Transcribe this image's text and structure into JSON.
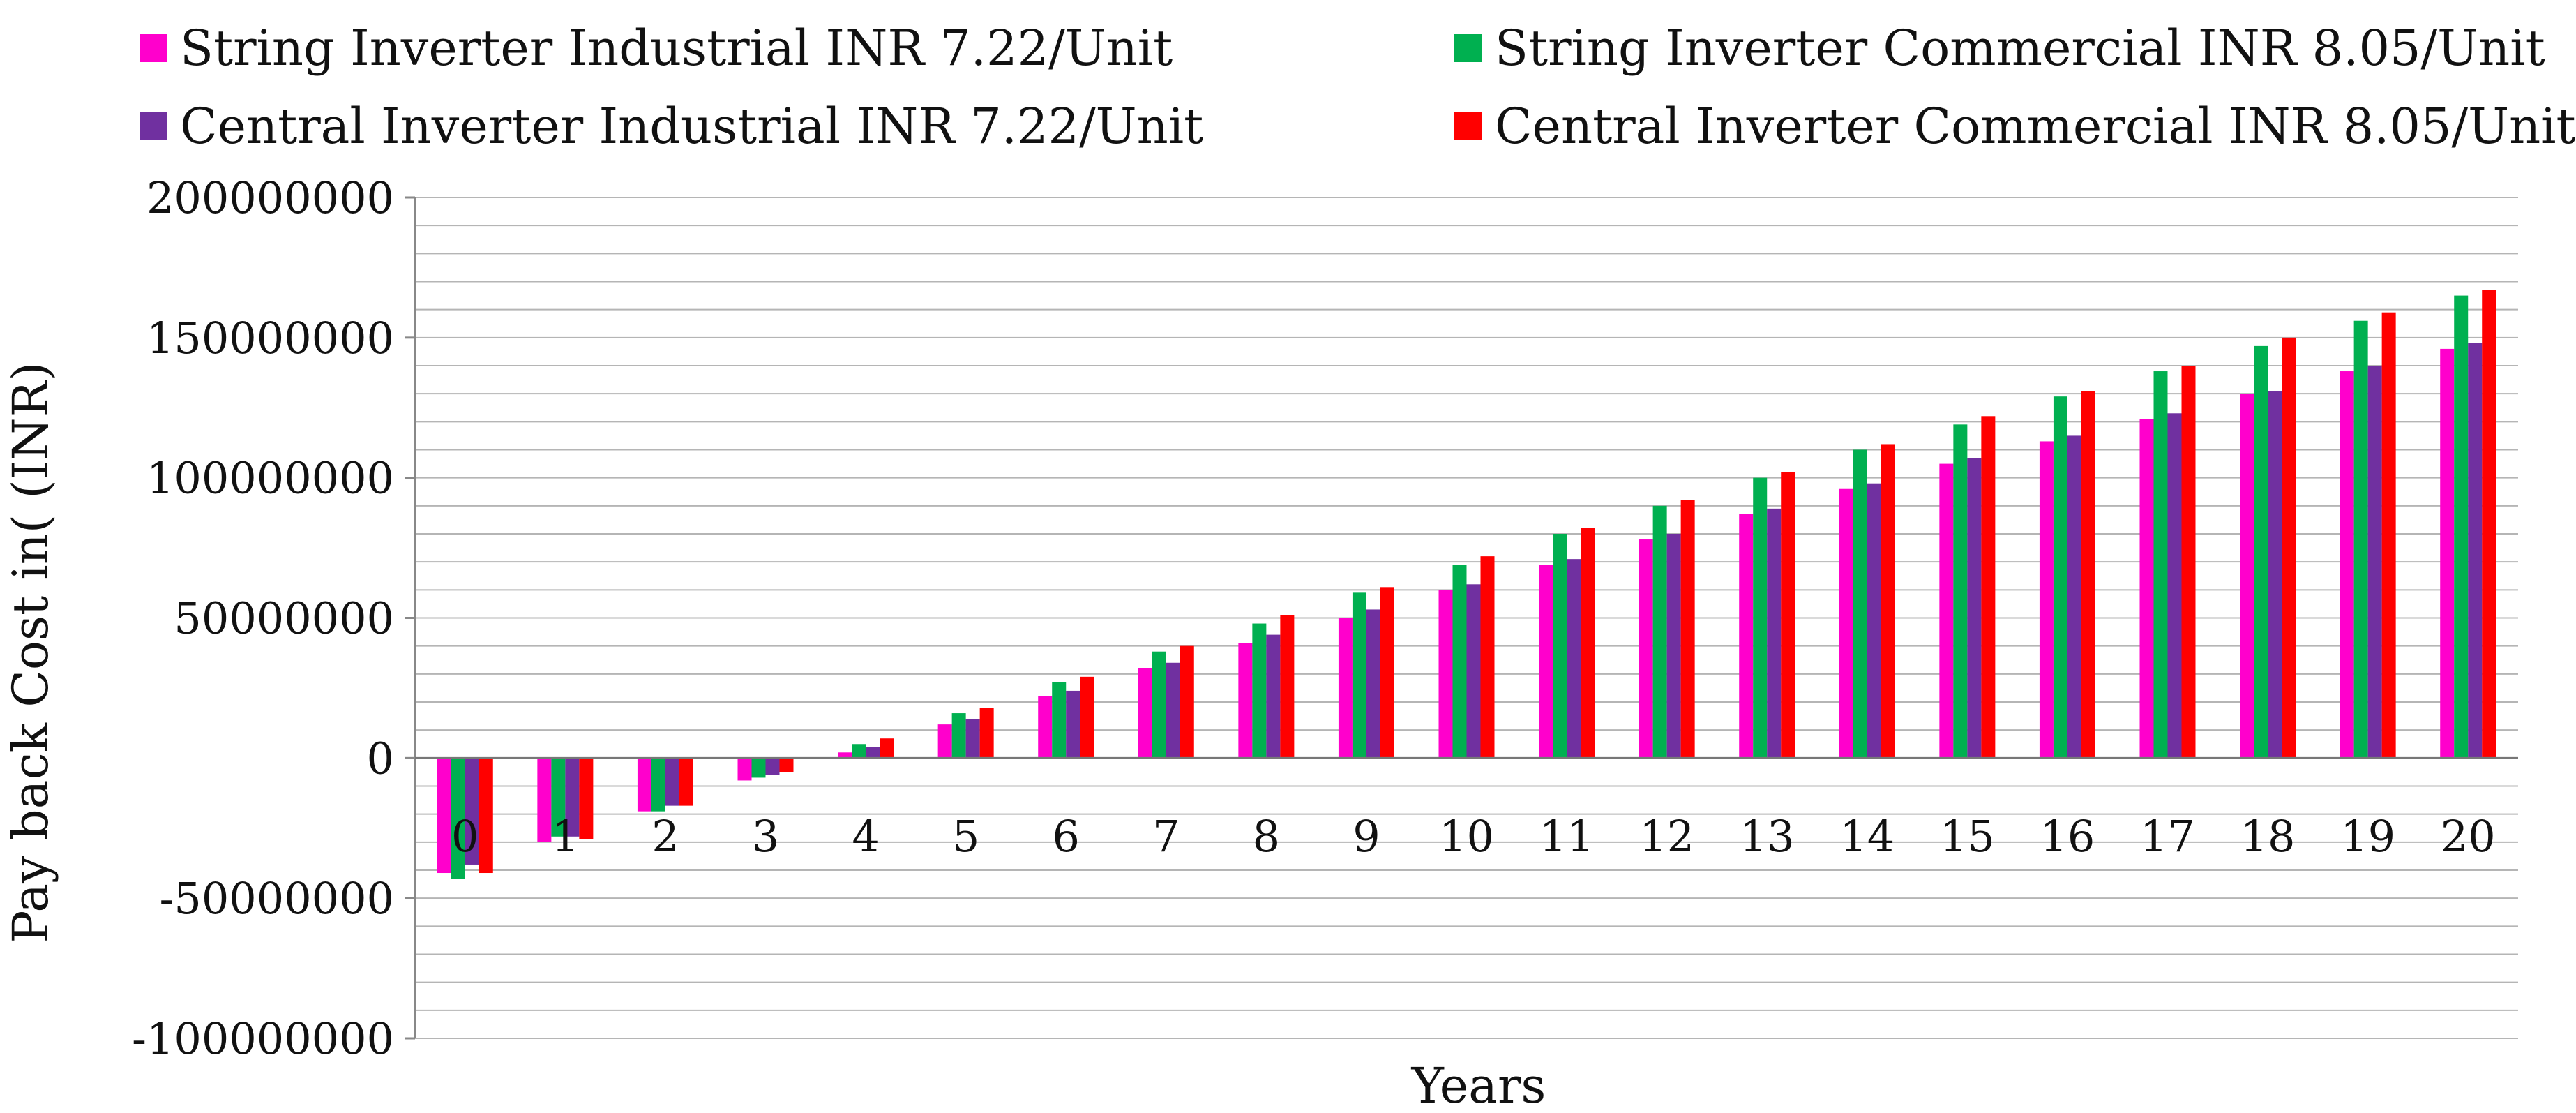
{
  "chart_data": {
    "type": "bar",
    "xlabel": "Years",
    "ylabel": "Pay back Cost  in( (INR)",
    "ylim": [
      -100000000,
      200000000
    ],
    "yticks": [
      200000000,
      150000000,
      100000000,
      50000000,
      0,
      -50000000,
      -100000000
    ],
    "ytick_labels": [
      "200000000",
      "150000000",
      "100000000",
      "50000000",
      "0",
      "-50000000",
      "-100000000"
    ],
    "categories": [
      "0",
      "1",
      "2",
      "3",
      "4",
      "5",
      "6",
      "7",
      "8",
      "9",
      "10",
      "11",
      "12",
      "13",
      "14",
      "15",
      "16",
      "17",
      "18",
      "19",
      "20"
    ],
    "grid": true,
    "legend_position": "top",
    "series": [
      {
        "name": "String Inverter Industrial INR 7.22/Unit",
        "color": "#FF00CC",
        "values": [
          -41000000,
          -30000000,
          -19000000,
          -8000000,
          2000000,
          12000000,
          22000000,
          32000000,
          41000000,
          50000000,
          60000000,
          69000000,
          78000000,
          87000000,
          96000000,
          105000000,
          113000000,
          121000000,
          130000000,
          138000000,
          146000000
        ]
      },
      {
        "name": "String Inverter Commercial INR 8.05/Unit",
        "color": "#00B050",
        "values": [
          -43000000,
          -28000000,
          -19000000,
          -7000000,
          5000000,
          16000000,
          27000000,
          38000000,
          48000000,
          59000000,
          69000000,
          80000000,
          90000000,
          100000000,
          110000000,
          119000000,
          129000000,
          138000000,
          147000000,
          156000000,
          165000000
        ]
      },
      {
        "name": "Central Inverter Industrial INR 7.22/Unit",
        "color": "#7030A0",
        "values": [
          -38000000,
          -28000000,
          -17000000,
          -6000000,
          4000000,
          14000000,
          24000000,
          34000000,
          44000000,
          53000000,
          62000000,
          71000000,
          80000000,
          89000000,
          98000000,
          107000000,
          115000000,
          123000000,
          131000000,
          140000000,
          148000000
        ]
      },
      {
        "name": "Central Inverter Commercial INR 8.05/Unit",
        "color": "#FF0000",
        "values": [
          -41000000,
          -29000000,
          -17000000,
          -5000000,
          7000000,
          18000000,
          29000000,
          40000000,
          51000000,
          61000000,
          72000000,
          82000000,
          92000000,
          102000000,
          112000000,
          122000000,
          131000000,
          140000000,
          150000000,
          159000000,
          167000000
        ]
      }
    ]
  }
}
